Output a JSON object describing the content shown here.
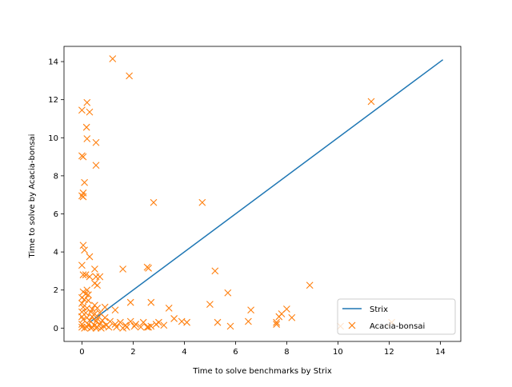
{
  "chart_data": {
    "type": "scatter",
    "xlabel": "Time to solve benchmarks by Strix",
    "ylabel": "Time to solve by Acacia-bonsai",
    "xlim": [
      -0.7,
      14.8
    ],
    "ylim": [
      -0.7,
      14.8
    ],
    "xticks": [
      0,
      2,
      4,
      6,
      8,
      10,
      12,
      14
    ],
    "yticks": [
      0,
      2,
      4,
      6,
      8,
      10,
      12,
      14
    ],
    "grid": false,
    "legend_position": "lower-right",
    "series": [
      {
        "name": "Strix",
        "kind": "line",
        "color": "#1f77b4",
        "x": [
          0.3,
          14.1
        ],
        "y": [
          0.3,
          14.1
        ]
      },
      {
        "name": "Acacia-bonsai",
        "kind": "marker-x",
        "color": "#ff7f0e",
        "points": [
          [
            1.2,
            14.15
          ],
          [
            1.85,
            13.25
          ],
          [
            0.2,
            11.85
          ],
          [
            0.0,
            11.45
          ],
          [
            0.3,
            11.35
          ],
          [
            11.3,
            11.9
          ],
          [
            0.18,
            10.55
          ],
          [
            0.2,
            9.95
          ],
          [
            0.55,
            9.75
          ],
          [
            0.0,
            9.05
          ],
          [
            0.05,
            9.0
          ],
          [
            0.55,
            8.55
          ],
          [
            0.1,
            7.65
          ],
          [
            0.05,
            7.1
          ],
          [
            0.0,
            6.95
          ],
          [
            0.05,
            6.9
          ],
          [
            2.8,
            6.6
          ],
          [
            4.7,
            6.6
          ],
          [
            0.05,
            4.35
          ],
          [
            0.1,
            4.1
          ],
          [
            0.3,
            3.75
          ],
          [
            0.0,
            3.3
          ],
          [
            0.5,
            3.1
          ],
          [
            1.6,
            3.1
          ],
          [
            2.55,
            3.2
          ],
          [
            2.6,
            3.15
          ],
          [
            5.2,
            3.0
          ],
          [
            0.05,
            2.8
          ],
          [
            0.15,
            2.8
          ],
          [
            0.3,
            2.7
          ],
          [
            0.55,
            2.7
          ],
          [
            0.7,
            2.7
          ],
          [
            0.5,
            2.35
          ],
          [
            0.6,
            2.25
          ],
          [
            8.9,
            2.25
          ],
          [
            0.2,
            2.0
          ],
          [
            0.05,
            1.9
          ],
          [
            0.15,
            1.8
          ],
          [
            0.25,
            1.75
          ],
          [
            5.7,
            1.85
          ],
          [
            0.0,
            1.6
          ],
          [
            0.1,
            1.5
          ],
          [
            0.25,
            1.45
          ],
          [
            0.0,
            1.3
          ],
          [
            1.9,
            1.35
          ],
          [
            2.7,
            1.35
          ],
          [
            5.0,
            1.25
          ],
          [
            0.5,
            1.2
          ],
          [
            0.05,
            1.1
          ],
          [
            0.2,
            1.05
          ],
          [
            0.4,
            1.0
          ],
          [
            0.6,
            1.05
          ],
          [
            0.9,
            1.1
          ],
          [
            1.3,
            0.95
          ],
          [
            3.4,
            1.05
          ],
          [
            6.6,
            0.95
          ],
          [
            8.0,
            1.0
          ],
          [
            0.0,
            0.85
          ],
          [
            0.15,
            0.8
          ],
          [
            0.35,
            0.85
          ],
          [
            0.5,
            0.75
          ],
          [
            0.7,
            0.8
          ],
          [
            7.8,
            0.75
          ],
          [
            0.0,
            0.6
          ],
          [
            0.2,
            0.55
          ],
          [
            0.4,
            0.6
          ],
          [
            0.6,
            0.5
          ],
          [
            0.9,
            0.55
          ],
          [
            3.6,
            0.5
          ],
          [
            7.7,
            0.6
          ],
          [
            8.2,
            0.55
          ],
          [
            0.05,
            0.45
          ],
          [
            0.3,
            0.4
          ],
          [
            0.55,
            0.35
          ],
          [
            0.8,
            0.4
          ],
          [
            1.1,
            0.35
          ],
          [
            1.5,
            0.3
          ],
          [
            1.9,
            0.35
          ],
          [
            2.4,
            0.3
          ],
          [
            3.0,
            0.3
          ],
          [
            3.9,
            0.35
          ],
          [
            4.1,
            0.3
          ],
          [
            5.3,
            0.3
          ],
          [
            6.5,
            0.35
          ],
          [
            7.6,
            0.3
          ],
          [
            12.1,
            0.3
          ],
          [
            0.0,
            0.2
          ],
          [
            0.25,
            0.2
          ],
          [
            0.5,
            0.15
          ],
          [
            0.7,
            0.2
          ],
          [
            0.95,
            0.15
          ],
          [
            1.3,
            0.2
          ],
          [
            1.7,
            0.15
          ],
          [
            2.1,
            0.2
          ],
          [
            2.9,
            0.2
          ],
          [
            3.2,
            0.15
          ],
          [
            7.6,
            0.2
          ],
          [
            0.0,
            0.05
          ],
          [
            0.2,
            0.05
          ],
          [
            0.4,
            0.05
          ],
          [
            0.6,
            0.05
          ],
          [
            0.85,
            0.1
          ],
          [
            1.05,
            0.05
          ],
          [
            1.35,
            0.05
          ],
          [
            1.75,
            0.05
          ],
          [
            2.05,
            0.1
          ],
          [
            2.3,
            0.05
          ],
          [
            2.55,
            0.05
          ],
          [
            2.7,
            0.1
          ],
          [
            5.8,
            0.1
          ],
          [
            10.1,
            0.1
          ],
          [
            0.1,
            0.0
          ],
          [
            0.35,
            0.0
          ],
          [
            0.55,
            0.0
          ],
          [
            0.75,
            0.0
          ],
          [
            1.6,
            0.0
          ],
          [
            2.6,
            0.05
          ]
        ]
      }
    ]
  }
}
